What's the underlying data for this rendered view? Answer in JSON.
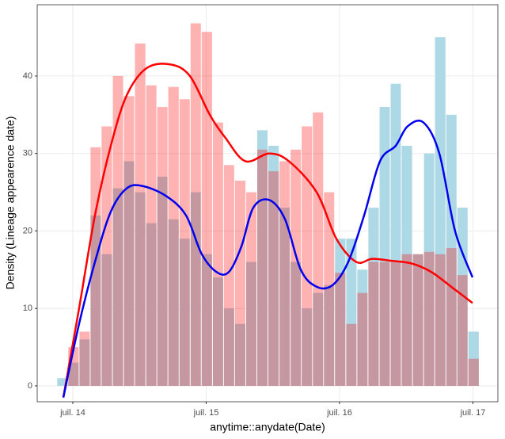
{
  "chart_data": {
    "type": "histogram",
    "x_label": "anytime::anydate(Date)",
    "y_label": "Density (Lineage appearence date)",
    "bins": [
      2014.38,
      2014.463,
      2014.547,
      2014.63,
      2014.713,
      2014.797,
      2014.88,
      2014.963,
      2015.047,
      2015.13,
      2015.213,
      2015.297,
      2015.38,
      2015.463,
      2015.547,
      2015.63,
      2015.713,
      2015.797,
      2015.88,
      2015.963,
      2016.047,
      2016.13,
      2016.213,
      2016.297,
      2016.38,
      2016.463,
      2016.547,
      2016.63,
      2016.713,
      2016.797,
      2016.88,
      2016.963,
      2017.047,
      2017.13,
      2017.213,
      2017.297,
      2017.38,
      2017.463,
      2017.547
    ],
    "series": [
      {
        "color": "#add8e6",
        "alpha": 1,
        "values": [
          1,
          3,
          6,
          22,
          17,
          25.5,
          29,
          25,
          21,
          27,
          21.5,
          19,
          25,
          17,
          14,
          10,
          8,
          16,
          33,
          31,
          23,
          16,
          10,
          12,
          13,
          19,
          19,
          15,
          23,
          36,
          39,
          31,
          17,
          30,
          45,
          35,
          23,
          7
        ]
      },
      {
        "color": "#ff0000",
        "alpha": 0.3,
        "values": [
          0,
          5,
          7,
          30.8,
          33.5,
          40,
          37.4,
          44.2,
          38.8,
          36,
          38.6,
          37,
          46.8,
          45.7,
          34,
          28.5,
          26.5,
          25,
          30.5,
          27.7,
          29,
          30.5,
          33.5,
          35.3,
          25,
          14.6,
          8,
          12,
          16,
          16,
          16,
          17,
          17,
          17.3,
          17,
          17.8,
          14.3,
          3.5
        ]
      }
    ],
    "lines": [
      {
        "color": "#ff0000",
        "x": [
          2014.429,
          2014.547,
          2014.666,
          2014.785,
          2014.904,
          2015.052,
          2015.23,
          2015.378,
          2015.527,
          2015.645,
          2015.794,
          2015.972,
          2016.12,
          2016.328,
          2016.476,
          2016.625,
          2016.743,
          2016.862,
          2017.04,
          2017.188,
          2017.337,
          2017.497
        ],
        "y": [
          -1.5,
          10,
          22,
          31,
          37.5,
          41,
          41.5,
          40,
          35,
          32,
          29,
          30,
          29,
          25,
          19,
          16,
          16.4,
          16.2,
          15.8,
          14.7,
          12.8,
          10.7
        ]
      },
      {
        "color": "#0000ee",
        "x": [
          2014.429,
          2014.547,
          2014.666,
          2014.785,
          2014.904,
          2015.022,
          2015.2,
          2015.349,
          2015.467,
          2015.586,
          2015.675,
          2015.764,
          2015.853,
          2015.972,
          2016.091,
          2016.209,
          2016.328,
          2016.447,
          2016.565,
          2016.684,
          2016.803,
          2016.921,
          2017.01,
          2017.129,
          2017.248,
          2017.366,
          2017.497
        ],
        "y": [
          -1.5,
          8,
          16,
          22.5,
          25.5,
          25.8,
          24.5,
          22,
          17,
          14.6,
          14.8,
          18,
          23,
          24,
          21.5,
          15,
          12.8,
          13,
          16,
          22,
          29,
          31,
          33.5,
          34,
          30,
          20,
          14
        ]
      }
    ],
    "xlim": [
      2014.233,
      2017.687
    ],
    "ylim": [
      -2.05,
      49.2
    ],
    "xticks": [
      {
        "value": 2014.5,
        "label": "juil. 14"
      },
      {
        "value": 2015.5,
        "label": "juil. 15"
      },
      {
        "value": 2016.5,
        "label": "juil. 16"
      },
      {
        "value": 2017.5,
        "label": "juil. 17"
      }
    ],
    "yticks": [
      0,
      10,
      20,
      30,
      40
    ],
    "grid": true
  }
}
